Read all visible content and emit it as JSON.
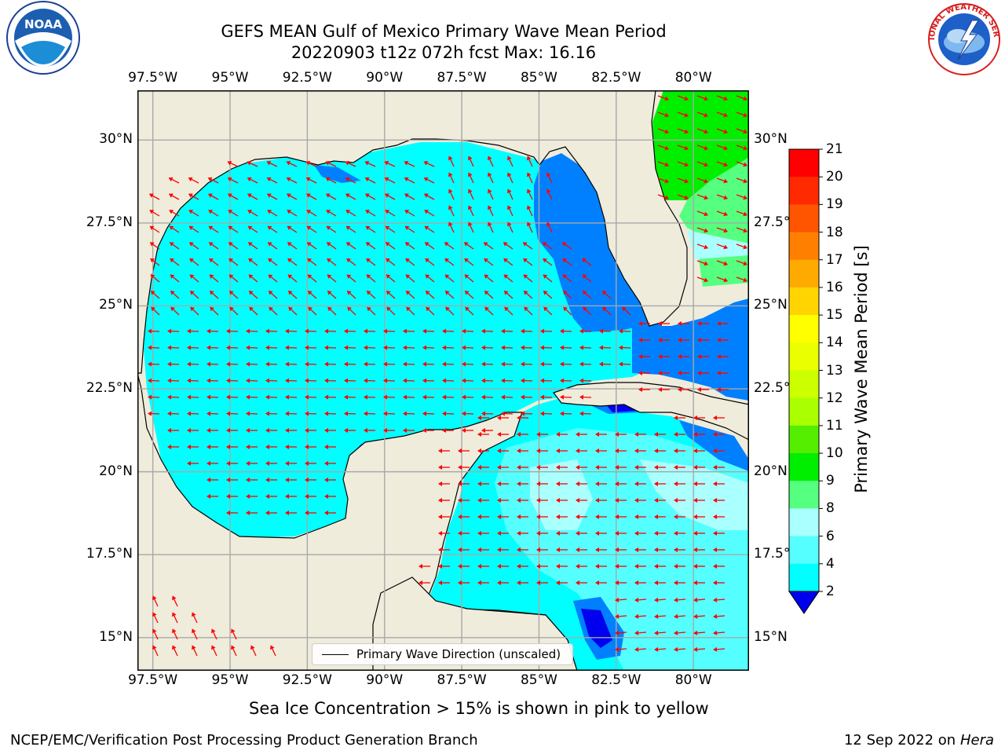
{
  "header": {
    "title_line1": "GEFS MEAN Gulf of Mexico Primary Wave Mean Period",
    "title_line2": "20220903 t12z 072h fcst   Max: 16.16"
  },
  "axes": {
    "lon_labels": [
      "97.5°W",
      "95°W",
      "92.5°W",
      "90°W",
      "87.5°W",
      "85°W",
      "82.5°W",
      "80°W"
    ],
    "lat_labels_left": [
      "30°N",
      "27.5°N",
      "25°N",
      "22.5°N",
      "20°N",
      "17.5°N",
      "15°N"
    ],
    "lat_labels_right": [
      "30°N",
      "27.5°N",
      "25°N",
      "22.5°N",
      "20°N",
      "17.5°N",
      "15°N"
    ]
  },
  "colorbar": {
    "title": "Primary Wave Mean Period [s]",
    "ticks": [
      "21",
      "20",
      "19",
      "18",
      "17",
      "16",
      "15",
      "14",
      "13",
      "12",
      "11",
      "10",
      "9",
      "8",
      "6",
      "4",
      "2"
    ],
    "colors": [
      "#ff0000",
      "#ff2a00",
      "#ff5500",
      "#ff8000",
      "#ffaa00",
      "#ffd400",
      "#ffff00",
      "#eaff00",
      "#ccff00",
      "#aaff00",
      "#55ee00",
      "#00ee00",
      "#55ff7f",
      "#aaffff",
      "#55ffff",
      "#00ffff",
      "#0080ff",
      "#0000ee"
    ]
  },
  "legend": {
    "label": "Primary Wave Direction (unscaled)"
  },
  "map_data": {
    "lon_range": [
      -98,
      -78.2
    ],
    "lat_range": [
      14,
      31.5
    ],
    "land_color": "#efecdc",
    "arrow_color": "#ff0000"
  },
  "footer": {
    "note": "Sea Ice Concentration > 15% is shown in pink to yellow",
    "credit_left": "NCEP/EMC/Verification Post Processing Product Generation Branch",
    "credit_right_prefix": "12 Sep 2022 on",
    "credit_right_host": "Hera"
  },
  "logos": {
    "noaa_text": "NOAA",
    "nws_text": "NATIONAL WEATHER SERVICE"
  }
}
